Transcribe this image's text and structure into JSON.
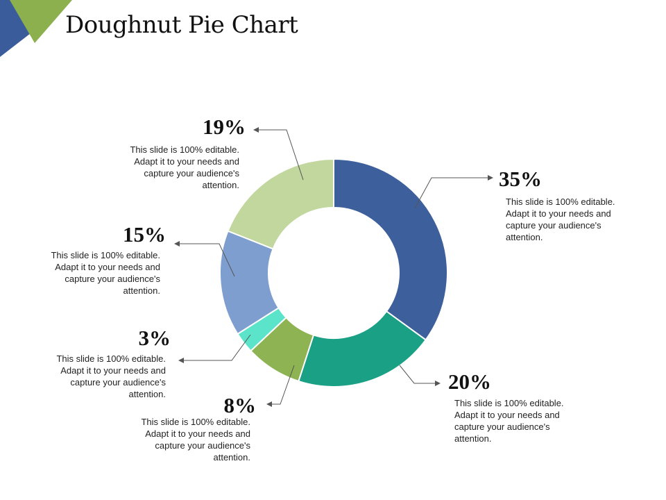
{
  "slide": {
    "title": "Doughnut Pie Chart",
    "colors": {
      "corner_blue": "#3B5C9A",
      "corner_green": "#8DB04E"
    }
  },
  "chart_data": {
    "type": "doughnut",
    "title": "Doughnut Pie Chart",
    "slices": [
      {
        "value": 35,
        "label": "35%",
        "color": "#3D5F9B",
        "description": [
          "This slide is 100% editable.",
          "Adapt it to your needs and",
          "capture your audience's",
          "attention."
        ]
      },
      {
        "value": 20,
        "label": "20%",
        "color": "#19A085",
        "description": [
          "This slide is 100% editable.",
          "Adapt it to your needs and",
          "capture your audience's",
          "attention."
        ]
      },
      {
        "value": 8,
        "label": "8%",
        "color": "#8EB352",
        "description": [
          "This slide is 100% editable.",
          "Adapt it to your needs and",
          "capture your audience's",
          "attention."
        ]
      },
      {
        "value": 3,
        "label": "3%",
        "color": "#5CE4CA",
        "description": [
          "This slide is 100% editable.",
          "Adapt it to your needs and",
          "capture your audience's",
          "attention."
        ]
      },
      {
        "value": 15,
        "label": "15%",
        "color": "#7E9ECF",
        "description": [
          "This slide is 100% editable.",
          "Adapt it to your needs and",
          "capture your audience's",
          "attention."
        ]
      },
      {
        "value": 19,
        "label": "19%",
        "color": "#C1D79D",
        "description": [
          "This slide is 100% editable.",
          "Adapt it to your needs and",
          "capture your audience's",
          "attention."
        ]
      }
    ]
  }
}
